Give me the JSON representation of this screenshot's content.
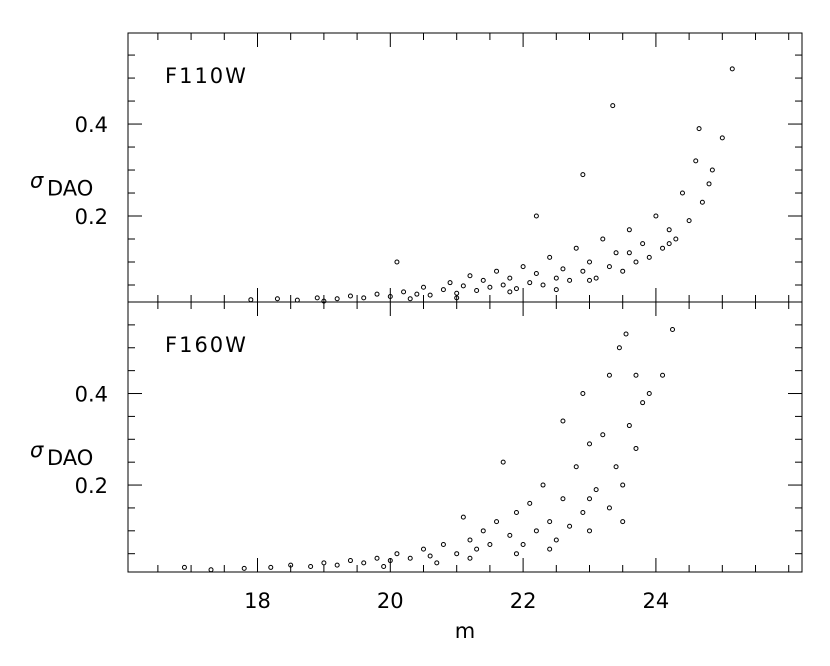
{
  "chart_data": [
    {
      "type": "scatter",
      "label": "F110W",
      "y_label": "σ",
      "y_label_sub": "DAO",
      "color": "#000000",
      "x": [
        17.9,
        18.3,
        18.6,
        18.9,
        19.2,
        19.4,
        19.6,
        19.8,
        20.0,
        20.1,
        20.2,
        20.4,
        20.5,
        20.6,
        20.8,
        20.9,
        21.0,
        21.1,
        21.2,
        21.3,
        21.4,
        21.5,
        21.6,
        21.7,
        21.8,
        21.9,
        22.0,
        22.1,
        22.2,
        22.2,
        22.3,
        22.4,
        22.5,
        22.6,
        22.7,
        22.8,
        22.9,
        22.9,
        23.0,
        23.1,
        23.2,
        23.3,
        23.35,
        23.4,
        23.5,
        23.6,
        23.7,
        23.8,
        23.9,
        24.0,
        24.1,
        24.2,
        24.3,
        24.4,
        24.5,
        24.6,
        24.7,
        24.8,
        24.85,
        25.0,
        25.15,
        24.65,
        23.0,
        22.5,
        21.8,
        21.0,
        20.3,
        19.0,
        23.6,
        24.2
      ],
      "y": [
        0.018,
        0.02,
        0.017,
        0.022,
        0.02,
        0.026,
        0.022,
        0.03,
        0.025,
        0.1,
        0.035,
        0.03,
        0.045,
        0.028,
        0.04,
        0.055,
        0.032,
        0.048,
        0.07,
        0.038,
        0.06,
        0.045,
        0.08,
        0.05,
        0.065,
        0.042,
        0.09,
        0.055,
        0.2,
        0.075,
        0.05,
        0.11,
        0.065,
        0.085,
        0.06,
        0.13,
        0.29,
        0.08,
        0.1,
        0.065,
        0.15,
        0.09,
        0.44,
        0.12,
        0.08,
        0.17,
        0.1,
        0.14,
        0.11,
        0.2,
        0.13,
        0.17,
        0.15,
        0.25,
        0.19,
        0.32,
        0.23,
        0.27,
        0.3,
        0.37,
        0.52,
        0.39,
        0.06,
        0.04,
        0.035,
        0.022,
        0.02,
        0.015,
        0.12,
        0.14
      ],
      "xlim": [
        16.05,
        26.2
      ],
      "ylim": [
        0.013,
        0.598
      ],
      "xticks": [
        18,
        20,
        22,
        24
      ],
      "xminorticks": [
        16.5,
        17,
        17.5,
        18.5,
        19,
        19.5,
        20.5,
        21,
        21.5,
        22.5,
        23,
        23.5,
        24.5,
        25,
        25.5,
        26
      ],
      "yticks": [
        0.2,
        0.4
      ],
      "yminorticks": [
        0.05,
        0.1,
        0.15,
        0.25,
        0.3,
        0.35,
        0.45,
        0.5,
        0.55
      ]
    },
    {
      "type": "scatter",
      "label": "F160W",
      "y_label": "σ",
      "y_label_sub": "DAO",
      "x_label": "m",
      "color": "#000000",
      "x": [
        16.9,
        17.3,
        17.8,
        18.2,
        18.5,
        18.8,
        19.0,
        19.2,
        19.4,
        19.6,
        19.8,
        20.0,
        20.1,
        20.3,
        20.5,
        20.6,
        20.8,
        21.0,
        21.1,
        21.2,
        21.3,
        21.4,
        21.5,
        21.6,
        21.7,
        21.8,
        21.9,
        22.0,
        22.1,
        22.2,
        22.3,
        22.4,
        22.5,
        22.6,
        22.6,
        22.7,
        22.8,
        22.9,
        23.0,
        23.0,
        23.1,
        23.2,
        23.3,
        23.3,
        23.4,
        23.45,
        23.5,
        23.55,
        23.6,
        23.7,
        23.7,
        23.8,
        23.9,
        24.1,
        24.25,
        22.9,
        22.4,
        21.9,
        21.2,
        20.7,
        19.9,
        23.0,
        23.5
      ],
      "y": [
        0.02,
        0.015,
        0.018,
        0.02,
        0.025,
        0.022,
        0.03,
        0.025,
        0.035,
        0.03,
        0.04,
        0.035,
        0.05,
        0.04,
        0.06,
        0.045,
        0.07,
        0.05,
        0.13,
        0.08,
        0.06,
        0.1,
        0.07,
        0.12,
        0.25,
        0.09,
        0.14,
        0.07,
        0.16,
        0.1,
        0.2,
        0.12,
        0.08,
        0.34,
        0.17,
        0.11,
        0.24,
        0.14,
        0.29,
        0.1,
        0.19,
        0.31,
        0.15,
        0.44,
        0.24,
        0.5,
        0.2,
        0.53,
        0.33,
        0.28,
        0.44,
        0.38,
        0.4,
        0.44,
        0.54,
        0.4,
        0.06,
        0.05,
        0.04,
        0.03,
        0.022,
        0.17,
        0.12
      ],
      "xlim": [
        16.05,
        26.2
      ],
      "ylim": [
        0.01,
        0.6
      ],
      "xticks": [
        18,
        20,
        22,
        24
      ],
      "xminorticks": [
        16.5,
        17,
        17.5,
        18.5,
        19,
        19.5,
        20.5,
        21,
        21.5,
        22.5,
        23,
        23.5,
        24.5,
        25,
        25.5,
        26
      ],
      "yticks": [
        0.2,
        0.4
      ],
      "yminorticks": [
        0.05,
        0.1,
        0.15,
        0.25,
        0.3,
        0.35,
        0.45,
        0.5,
        0.55
      ]
    }
  ]
}
